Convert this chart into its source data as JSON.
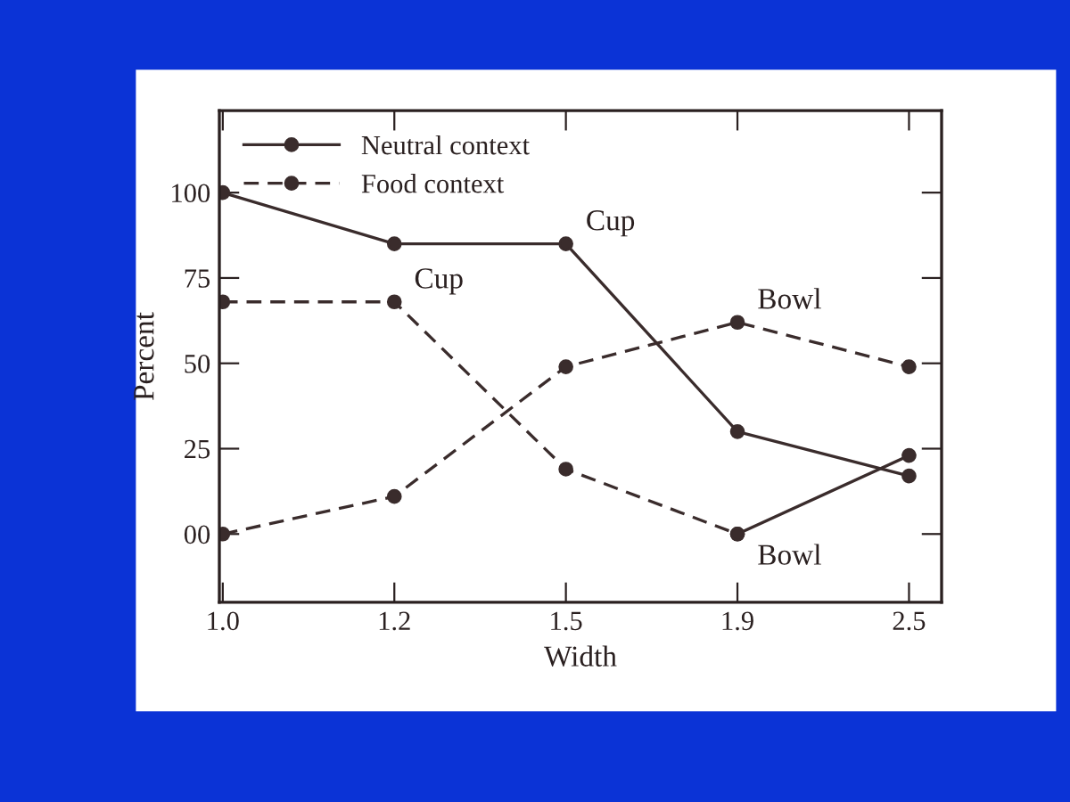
{
  "chart_data": {
    "type": "line",
    "xlabel": "Width",
    "ylabel": "Percent",
    "categories": [
      "1.0",
      "1.2",
      "1.5",
      "1.9",
      "2.5"
    ],
    "series": [
      {
        "name": "Neutral context",
        "color": "#3a2c2c",
        "line_style": "solid",
        "values": [
          100,
          85,
          85,
          30,
          17
        ]
      },
      {
        "color": "#3a2c2c",
        "line_style": "solid",
        "values": [
          null,
          null,
          null,
          0,
          23
        ]
      },
      {
        "name": "Food context",
        "color": "#3a2c2c",
        "line_style": "dashed",
        "values": [
          68,
          68,
          19,
          0,
          null
        ]
      },
      {
        "color": "#3a2c2c",
        "line_style": "dashed",
        "values": [
          0,
          11,
          49,
          62,
          49
        ]
      }
    ],
    "ylim": [
      -20,
      124
    ],
    "yticks": [
      {
        "value": 0,
        "label": "00"
      },
      25,
      50,
      75,
      100
    ],
    "marker": "circle",
    "legend": "top left",
    "grid": false,
    "annotations": [
      {
        "text": "Cup",
        "x": "1.5",
        "y": 85
      },
      {
        "text": "Cup",
        "x": "1.2",
        "y": 68
      },
      {
        "text": "Bowl",
        "x": "1.9",
        "y": 62
      },
      {
        "text": "Bowl",
        "x": "1.9",
        "y": 0
      }
    ]
  }
}
